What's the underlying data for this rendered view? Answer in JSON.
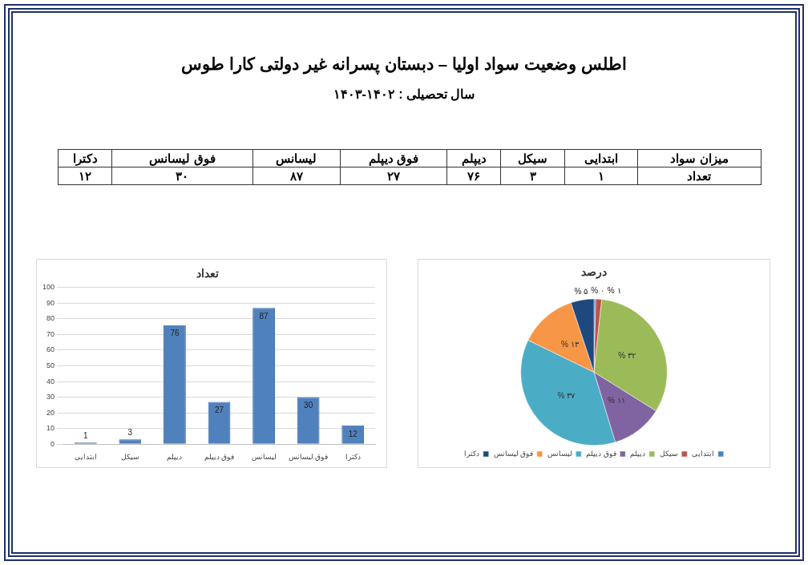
{
  "chart_data": [
    {
      "type": "other",
      "title": "اطلس وضعیت سواد اولیا – دبستان پسرانه غیر دولتی کارا طوس",
      "subtitle": "سال تحصیلی : ۱۴۰۲-۱۴۰۳",
      "xlabel": "میزان سواد",
      "ylabel": "تعداد",
      "categories": [
        "ابتدایی",
        "سیکل",
        "دیپلم",
        "فوق دیپلم",
        "لیسانس",
        "فوق لیسانس",
        "دکترا"
      ],
      "values": [
        1,
        3,
        76,
        27,
        87,
        30,
        12
      ],
      "value_labels": [
        "۱",
        "۳",
        "۷۶",
        "۲۷",
        "۸۷",
        "۳۰",
        "۱۲"
      ]
    },
    {
      "type": "bar",
      "title": "تعداد",
      "categories": [
        "ابتدایی",
        "سیکل",
        "دیپلم",
        "فوق دیپلم",
        "لیسانس",
        "فوق لیسانس",
        "دکترا"
      ],
      "values": [
        1,
        3,
        76,
        27,
        87,
        30,
        12
      ],
      "color": "#4f81bd",
      "ylim": [
        0,
        100
      ],
      "yticks": [
        0,
        10,
        20,
        30,
        40,
        50,
        60,
        70,
        80,
        90,
        100
      ],
      "grid": "y",
      "data_labels": true
    },
    {
      "type": "pie",
      "title": "درصد",
      "categories": [
        "ابتدایی",
        "سیکل",
        "دیپلم",
        "فوق دیپلم",
        "لیسانس",
        "فوق لیسانس",
        "دکترا"
      ],
      "values": [
        0.4,
        1.3,
        32.2,
        11.4,
        36.9,
        12.7,
        5.1
      ],
      "value_labels": [
        "% ۰",
        "% ۱",
        "% ۳۲",
        "% ۱۱",
        "% ۳۷",
        "% ۱۳",
        "% ۵"
      ],
      "colors": [
        "#4f81bd",
        "#c0504d",
        "#9bbb59",
        "#8064a2",
        "#4bacc6",
        "#f79646",
        "#1f497d"
      ],
      "legend": "bottom"
    }
  ]
}
